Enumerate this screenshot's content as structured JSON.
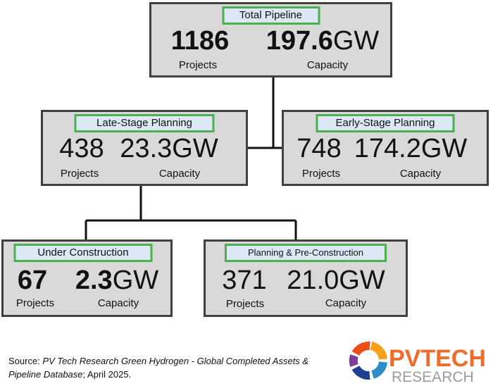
{
  "nodes": [
    {
      "title": "Total Pipeline",
      "projects": "1186",
      "projects_label": "Projects",
      "capacity": "197.6",
      "unit": "GW",
      "capacity_label": "Capacity"
    },
    {
      "title": "Late-Stage Planning",
      "projects": "438",
      "projects_label": "Projects",
      "capacity": "23.3",
      "unit": "GW",
      "capacity_label": "Capacity"
    },
    {
      "title": "Early-Stage Planning",
      "projects": "748",
      "projects_label": "Projects",
      "capacity": "174.2",
      "unit": "GW",
      "capacity_label": "Capacity"
    },
    {
      "title": "Under Construction",
      "projects": "67",
      "projects_label": "Projects",
      "capacity": "2.3",
      "unit": "GW",
      "capacity_label": "Capacity"
    },
    {
      "title": "Planning & Pre-Construction",
      "projects": "371",
      "projects_label": "Projects",
      "capacity": "21.0",
      "unit": "GW",
      "capacity_label": "Capacity"
    }
  ],
  "footer": {
    "source_prefix": "Source: ",
    "source_title": "PV Tech Research Green Hydrogen - Global Completed Assets & Pipeline Database",
    "source_suffix": "; April 2025.",
    "logo_top": "PVTECH",
    "logo_bottom": "RESEARCH"
  }
}
